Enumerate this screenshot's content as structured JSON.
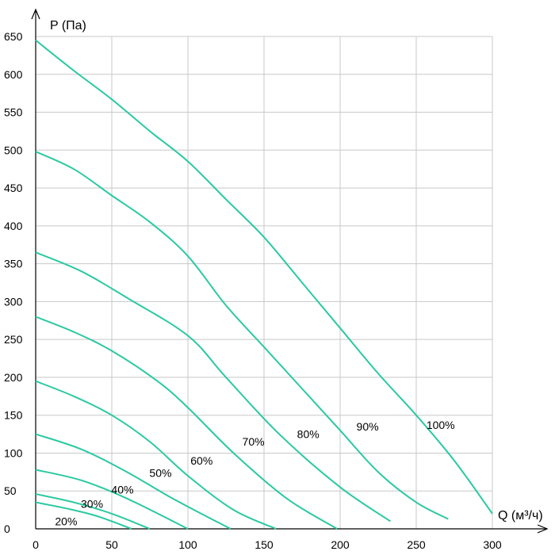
{
  "chart_data": {
    "type": "line",
    "xlabel": "Q (м³/ч)",
    "ylabel": "P (Па)",
    "xlim": [
      0,
      300
    ],
    "ylim": [
      0,
      650
    ],
    "x_ticks": [
      "0",
      "50",
      "100",
      "150",
      "200",
      "250",
      "300"
    ],
    "y_ticks": [
      "0",
      "50",
      "100",
      "150",
      "200",
      "250",
      "300",
      "350",
      "400",
      "450",
      "500",
      "550",
      "600",
      "650"
    ],
    "grid": true,
    "line_color": "#2bc9a2",
    "series": [
      {
        "name": "20%",
        "label": "20%",
        "label_at": [
          20,
          10
        ],
        "points": [
          [
            0,
            35
          ],
          [
            20,
            27
          ],
          [
            40,
            17
          ],
          [
            63,
            0
          ]
        ]
      },
      {
        "name": "30%",
        "label": "30%",
        "label_at": [
          37,
          33
        ],
        "points": [
          [
            0,
            46
          ],
          [
            25,
            35
          ],
          [
            50,
            20
          ],
          [
            75,
            0
          ]
        ]
      },
      {
        "name": "40%",
        "label": "40%",
        "label_at": [
          57,
          52
        ],
        "points": [
          [
            0,
            78
          ],
          [
            30,
            64
          ],
          [
            60,
            40
          ],
          [
            100,
            0
          ]
        ]
      },
      {
        "name": "50%",
        "label": "50%",
        "label_at": [
          82,
          74
        ],
        "points": [
          [
            0,
            125
          ],
          [
            30,
            105
          ],
          [
            60,
            75
          ],
          [
            90,
            40
          ],
          [
            128,
            0
          ]
        ]
      },
      {
        "name": "60%",
        "label": "60%",
        "label_at": [
          109,
          90
        ],
        "points": [
          [
            0,
            195
          ],
          [
            25,
            175
          ],
          [
            50,
            150
          ],
          [
            75,
            115
          ],
          [
            100,
            70
          ],
          [
            130,
            25
          ],
          [
            158,
            0
          ]
        ]
      },
      {
        "name": "70%",
        "label": "70%",
        "label_at": [
          143,
          115
        ],
        "points": [
          [
            0,
            280
          ],
          [
            25,
            260
          ],
          [
            50,
            235
          ],
          [
            80,
            195
          ],
          [
            100,
            160
          ],
          [
            130,
            100
          ],
          [
            165,
            40
          ],
          [
            198,
            0
          ]
        ]
      },
      {
        "name": "80%",
        "label": "80%",
        "label_at": [
          179,
          125
        ],
        "points": [
          [
            0,
            365
          ],
          [
            30,
            340
          ],
          [
            60,
            305
          ],
          [
            100,
            255
          ],
          [
            125,
            200
          ],
          [
            160,
            125
          ],
          [
            200,
            55
          ],
          [
            233,
            10
          ]
        ]
      },
      {
        "name": "90%",
        "label": "90%",
        "label_at": [
          218,
          135
        ],
        "points": [
          [
            0,
            498
          ],
          [
            25,
            475
          ],
          [
            50,
            440
          ],
          [
            75,
            405
          ],
          [
            100,
            360
          ],
          [
            125,
            295
          ],
          [
            150,
            240
          ],
          [
            175,
            185
          ],
          [
            200,
            130
          ],
          [
            225,
            75
          ],
          [
            250,
            35
          ],
          [
            271,
            13
          ]
        ]
      },
      {
        "name": "100%",
        "label": "100%",
        "label_at": [
          266,
          137
        ],
        "points": [
          [
            0,
            645
          ],
          [
            25,
            605
          ],
          [
            50,
            567
          ],
          [
            75,
            525
          ],
          [
            100,
            485
          ],
          [
            125,
            435
          ],
          [
            150,
            385
          ],
          [
            175,
            325
          ],
          [
            200,
            265
          ],
          [
            225,
            205
          ],
          [
            250,
            150
          ],
          [
            275,
            90
          ],
          [
            300,
            20
          ]
        ]
      }
    ]
  }
}
